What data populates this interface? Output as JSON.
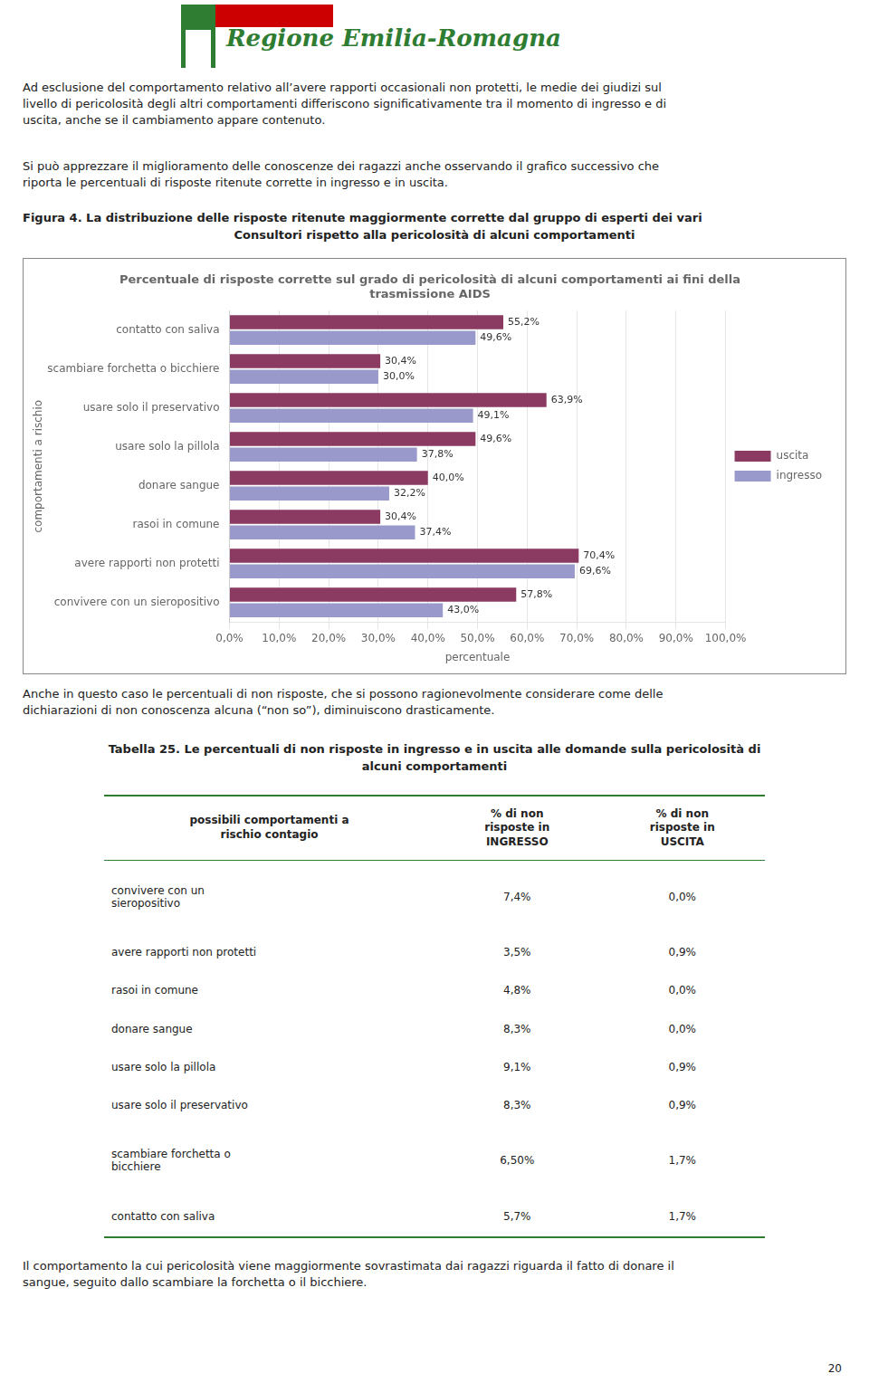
{
  "logo_text": "Regione Emilia-Romagna",
  "logo_colors": [
    "#2E7D32",
    "#CC0000"
  ],
  "intro_texts": [
    "Ad esclusione del comportamento relativo all’avere rapporti occasionali non protetti, le medie dei giudizi sul\nlivello di pericolosità degli altri comportamenti differiscono significativamente tra il momento di ingresso e di\nuscita, anche se il cambiamento appare contenuto.",
    "Si può apprezzare il miglioramento delle conoscenze dei ragazzi anche osservando il grafico successivo che\nriporta le percentuali di risposte ritenute corrette in ingresso e in uscita."
  ],
  "figure_title": [
    "Figura 4. La distribuzione delle risposte ritenute maggiormente corrette dal gruppo di esperti dei vari",
    "Consultori rispetto alla pericolosità di alcuni comportamenti"
  ],
  "chart_data": {
    "type": "bar",
    "orientation": "horizontal",
    "title": "Percentuale di risposte corrette sul grado di pericolosità di alcuni comportamenti ai fini della\ntrasmissione AIDS",
    "categories": [
      "contatto con saliva",
      "scambiare forchetta o bicchiere",
      "usare solo il preservativo",
      "usare solo la pillola",
      "donare sangue",
      "rasoi in comune",
      "avere rapporti non protetti",
      "convivere con un sieropositivo"
    ],
    "series": [
      {
        "name": "uscita",
        "color": "#8B3A62",
        "values": [
          55.2,
          30.4,
          63.9,
          49.6,
          40.0,
          30.4,
          70.4,
          57.8
        ],
        "value_labels": [
          "55,2%",
          "30,4%",
          "63,9%",
          "49,6%",
          "40,0%",
          "30,4%",
          "70,4%",
          "57,8%"
        ]
      },
      {
        "name": "ingresso",
        "color": "#9999CC",
        "values": [
          49.6,
          30.0,
          49.1,
          37.8,
          32.2,
          37.4,
          69.6,
          43.0
        ],
        "value_labels": [
          "49,6%",
          "30,0%",
          "49,1%",
          "37,8%",
          "32,2%",
          "37,4%",
          "69,6%",
          "43,0%"
        ]
      }
    ],
    "xlabel": "percentuale",
    "ylabel": "comportamenti a rischio",
    "xlim": [
      0,
      100
    ],
    "xticks": [
      {
        "value": 0,
        "label": "0,0%"
      },
      {
        "value": 10,
        "label": "10,0%"
      },
      {
        "value": 20,
        "label": "20,0%"
      },
      {
        "value": 30,
        "label": "30,0%"
      },
      {
        "value": 40,
        "label": "40,0%"
      },
      {
        "value": 50,
        "label": "50,0%"
      },
      {
        "value": 60,
        "label": "60,0%"
      },
      {
        "value": 70,
        "label": "70,0%"
      },
      {
        "value": 80,
        "label": "80,0%"
      },
      {
        "value": 90,
        "label": "90,0%"
      },
      {
        "value": 100,
        "label": "100,0%"
      }
    ],
    "grid": true,
    "legend": "right",
    "data_labels": true
  },
  "after_chart_text": "Anche in questo caso le percentuali di non risposte, che si possono ragionevolmente considerare come delle\ndichiarazioni di non conoscenza alcuna (“non so”), diminuiscono drasticamente.",
  "table": {
    "title": [
      "Tabella 25. Le percentuali di non risposte in ingresso e in uscita alle domande sulla pericolosità di",
      "alcuni comportamenti"
    ],
    "line_color": "#2E7D32",
    "columns": [
      "possibili comportamenti a\nrischio contagio",
      "% di non\nrisposte in\nINGRESSO",
      "% di non\nrisposte in\nUSCITA"
    ],
    "rows": [
      [
        "convivere con un\nsieropositivo",
        "7,4%",
        "0,0%"
      ],
      [
        "avere rapporti non protetti",
        "3,5%",
        "0,9%"
      ],
      [
        "rasoi in comune",
        "4,8%",
        "0,0%"
      ],
      [
        "donare sangue",
        "8,3%",
        "0,0%"
      ],
      [
        "usare solo la pillola",
        "9,1%",
        "0,9%"
      ],
      [
        "usare solo il preservativo",
        "8,3%",
        "0,9%"
      ],
      [
        "scambiare forchetta o\nbicchiere",
        "6,50%",
        "1,7%"
      ],
      [
        "contatto con saliva",
        "5,7%",
        "1,7%"
      ]
    ]
  },
  "footer_text": "Il comportamento la cui pericolosità viene maggiormente sovrastimata dai ragazzi riguarda il fatto di donare il\nsangue, seguito dallo scambiare la forchetta o il bicchiere.",
  "page_number": "20"
}
